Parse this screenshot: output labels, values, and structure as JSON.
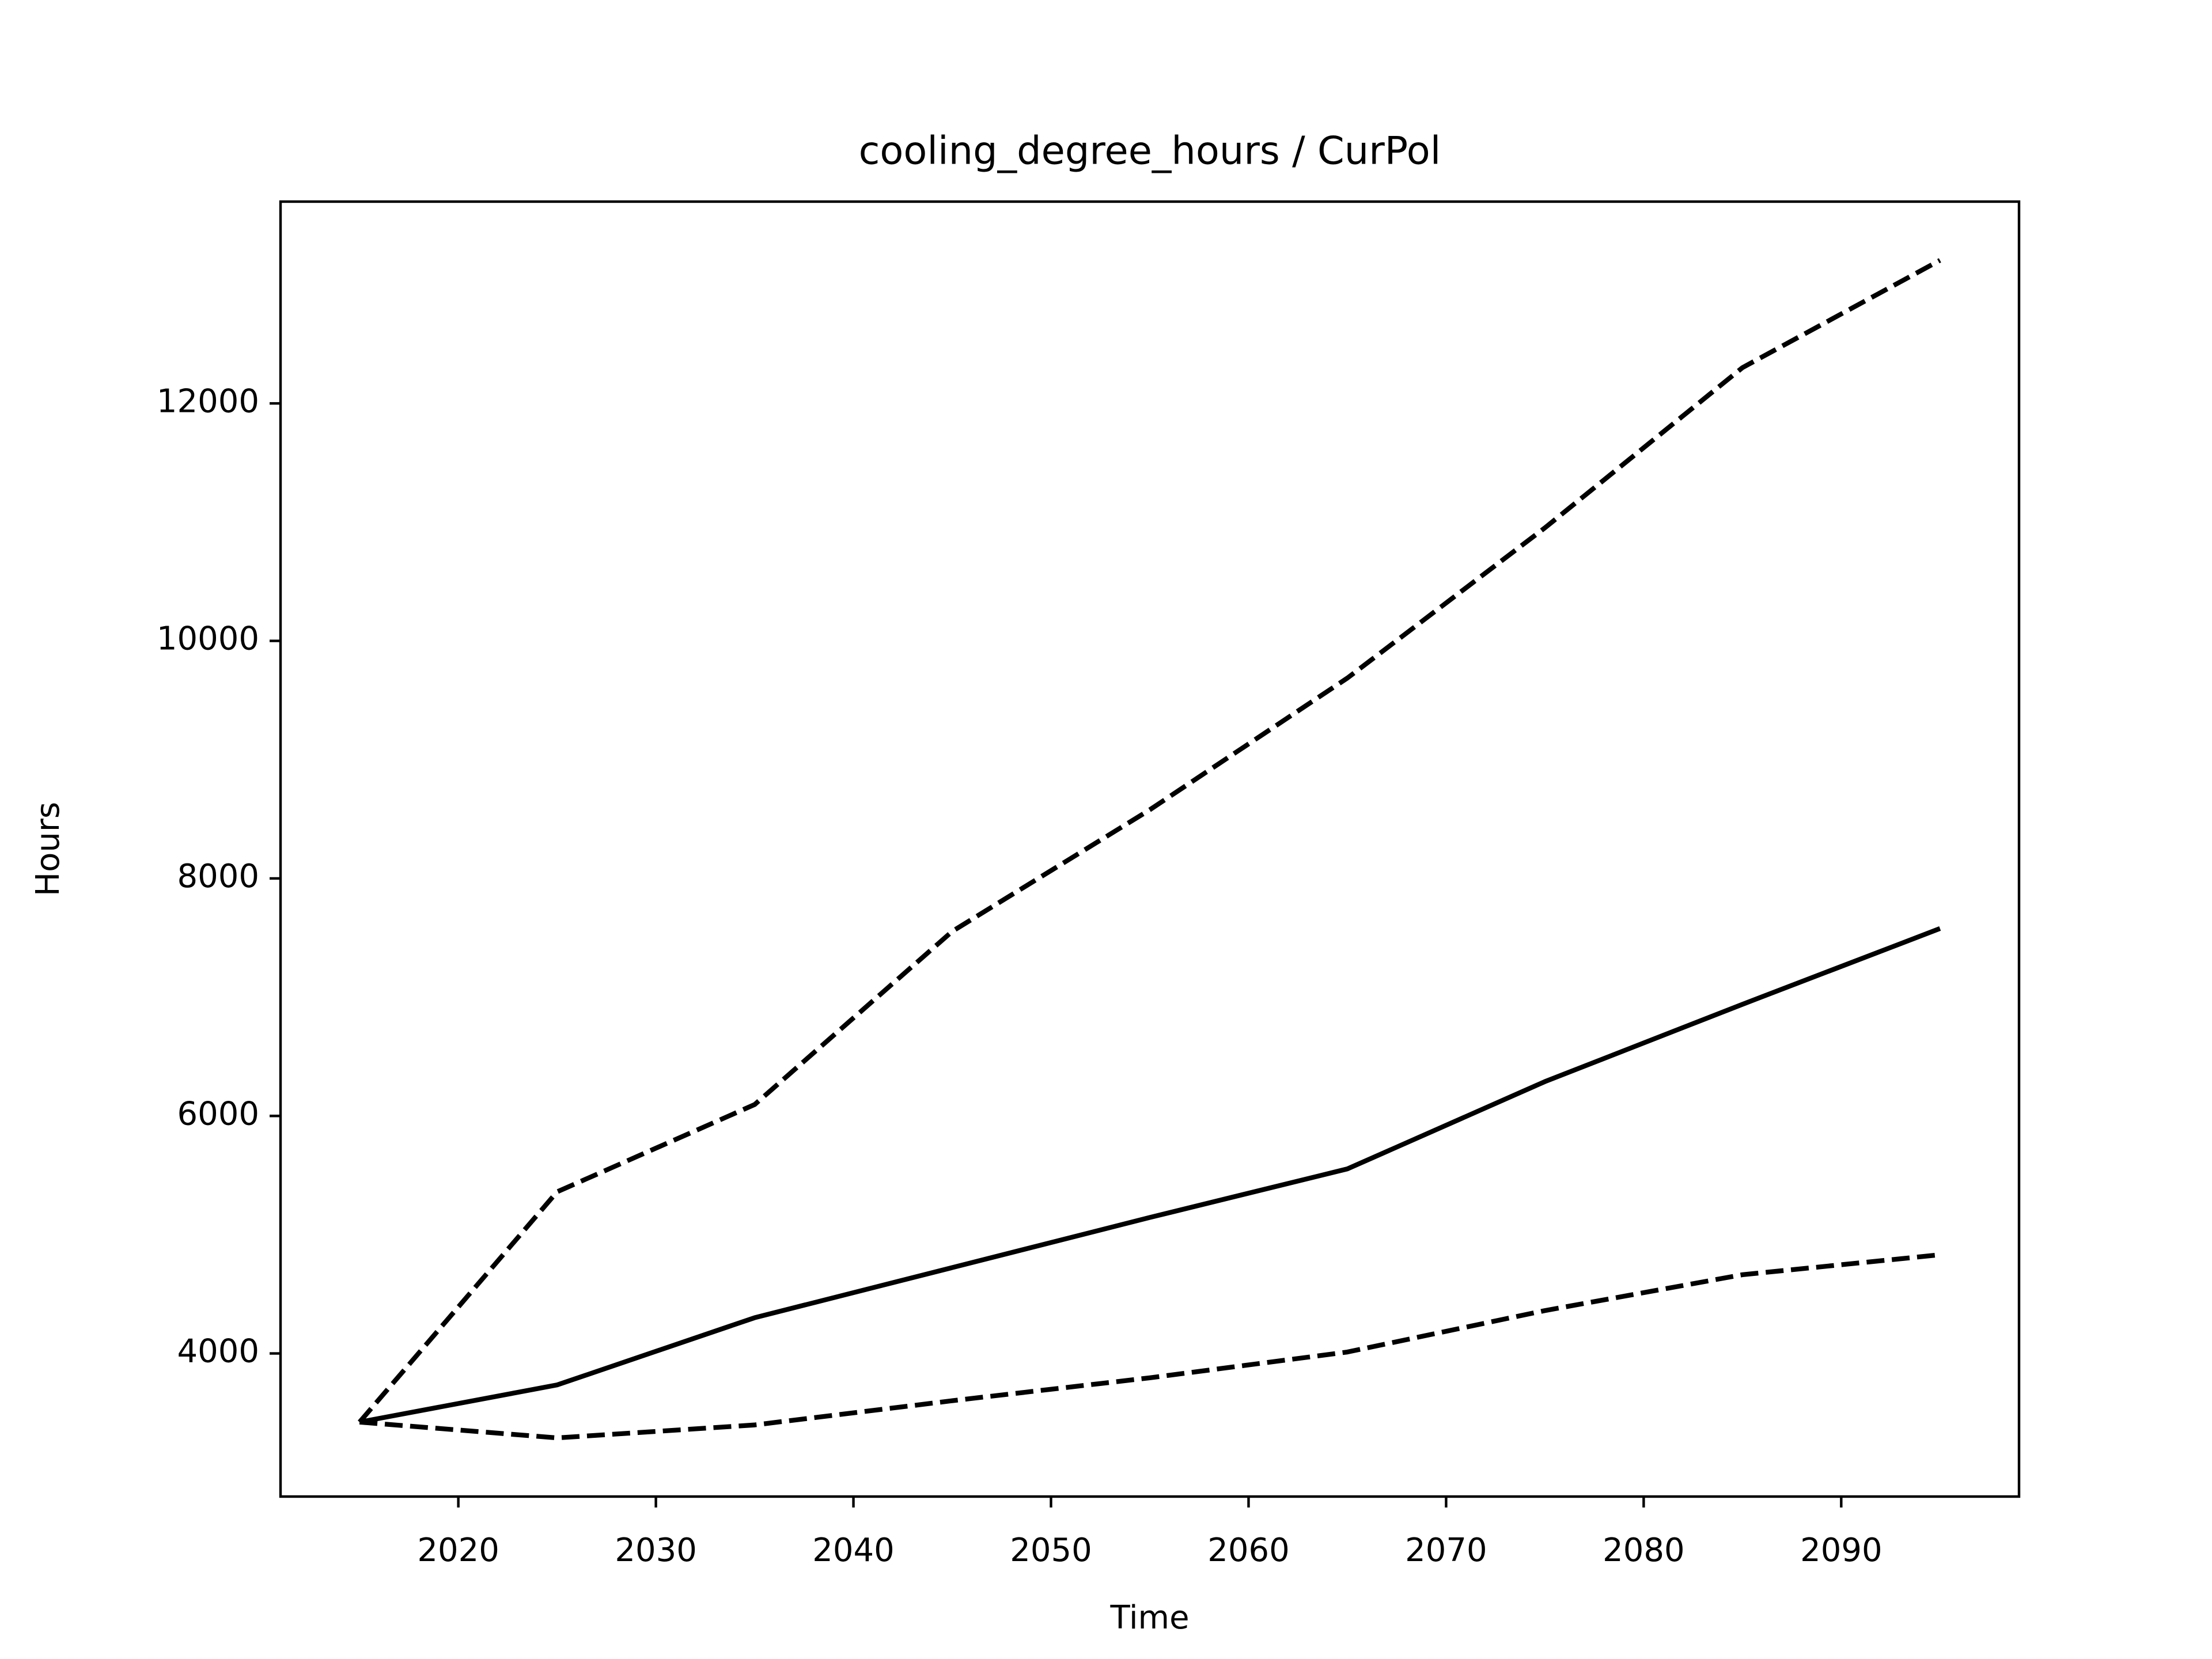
{
  "chart_data": {
    "type": "line",
    "title": "cooling_degree_hours / CurPol",
    "x_label": "Time",
    "y_label": "Hours",
    "x": [
      2015,
      2025,
      2035,
      2045,
      2055,
      2065,
      2075,
      2085,
      2095
    ],
    "series": [
      {
        "color": "#000000",
        "dash": "solid",
        "values": [
          3422,
          3735,
          4301,
          4723,
          5145,
          5554,
          6289,
          6940,
          7578
        ]
      },
      {
        "color": "#000000",
        "dash": "dashed",
        "values": [
          3422,
          5361,
          6096,
          7554,
          8578,
          9687,
          10952,
          12301,
          13205
        ]
      },
      {
        "color": "#000000",
        "dash": "dashed",
        "values": [
          3422,
          3289,
          3398,
          3602,
          3795,
          4012,
          4361,
          4663,
          4831
        ]
      }
    ],
    "xlim": [
      2011,
      2099
    ],
    "xticks": [
      2020,
      2030,
      2040,
      2050,
      2060,
      2070,
      2080,
      2090
    ],
    "ylim": [
      2795,
      13699
    ],
    "yticks": [
      4000,
      6000,
      8000,
      10000,
      12000
    ],
    "grid": false
  }
}
